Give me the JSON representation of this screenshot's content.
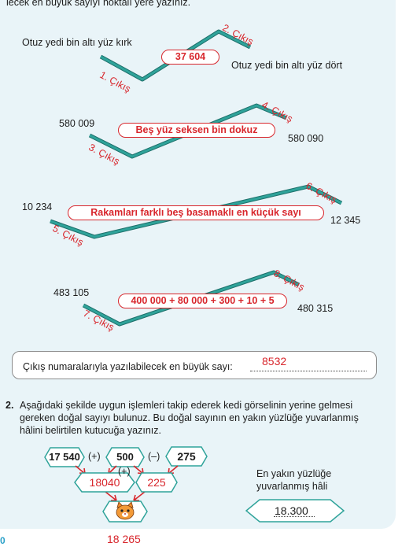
{
  "top_cut_text": "lecek en büyük sayıyı noktalı yere yazınız.",
  "routes": [
    {
      "left_text": "Otuz yedi bin altı yüz kırk",
      "right_text": "Otuz yedi bin altı yüz dört",
      "center": "37 604",
      "exit_low": "1. Çıkış",
      "exit_high": "2. Çıkış"
    },
    {
      "left_text": "580 009",
      "right_text": "580 090",
      "center": "Beş yüz seksen bin dokuz",
      "exit_low": "3. Çıkış",
      "exit_high": "4. Çıkış"
    },
    {
      "left_text": "10 234",
      "right_text": "12 345",
      "center": "Rakamları farklı beş basamaklı en küçük sayı",
      "exit_low": "5. Çıkış",
      "exit_high": "6. Çıkış"
    },
    {
      "left_text": "483 105",
      "right_text": "480 315",
      "center": "400 000 + 80 000 + 300 + 10 + 5",
      "exit_low": "7. Çıkış",
      "exit_high": "8. Çıkış"
    }
  ],
  "answer_box": {
    "label": "Çıkış numaralarıyla yazılabilecek en büyük sayı: ",
    "answer": "8532"
  },
  "q2": {
    "number": "2.",
    "text_line1": "Aşağıdaki şekilde uygun işlemleri takip ederek kedi görselinin yerine gelmesi",
    "text_line2": "gereken doğal sayıyı bulunuz. Bu doğal sayının en yakın yüzlüğe yuvarlanmış",
    "text_line3": "hâlini belirtilen kutucuğa yazınız."
  },
  "pyramid": {
    "top": [
      "17 540",
      "500",
      "275"
    ],
    "ops_top": [
      "(+)",
      "(–)"
    ],
    "middle": [
      "18040",
      "225"
    ],
    "op_middle": "(+)",
    "cat": "cat-icon"
  },
  "rounded": {
    "label_line1": "En yakın yüzlüğe",
    "label_line2": "yuvarlanmış hâli",
    "value": "18.300"
  },
  "bottom_answer": "18 265",
  "page_number": "0",
  "colors": {
    "teal": "#2fa39a",
    "teal_dark": "#1d6f6a",
    "red": "#d8262c",
    "panel": "#e9f4f8"
  }
}
